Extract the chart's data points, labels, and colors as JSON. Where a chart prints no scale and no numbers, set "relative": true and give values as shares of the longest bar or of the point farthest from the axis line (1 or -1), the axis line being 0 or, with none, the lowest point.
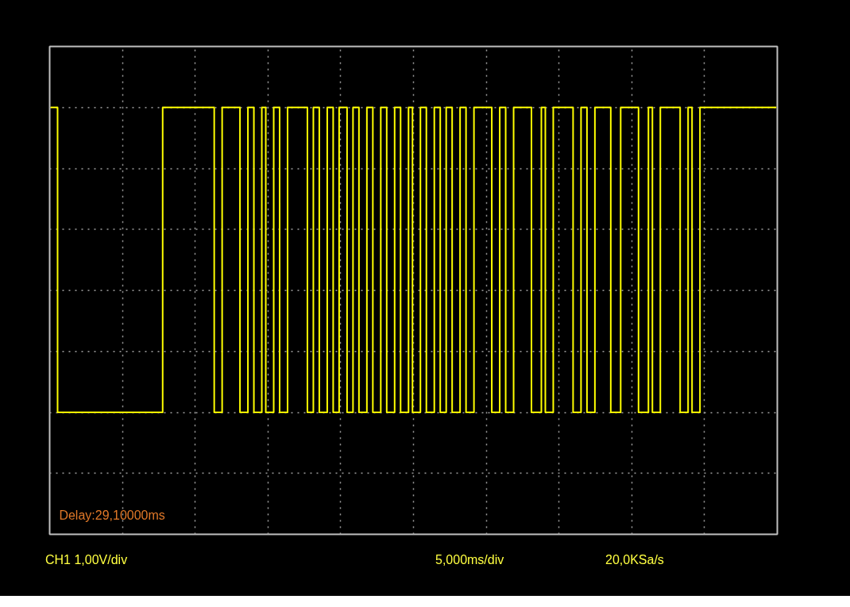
{
  "chart_data": {
    "type": "step",
    "relative": true,
    "grid": true,
    "color": "#ffff00",
    "annotations": [
      "Delay:29,10000ms",
      "CH1 1,00V/div",
      "5,000ms/div",
      "20,0KSa/s"
    ],
    "categories": [
      null,
      null,
      null,
      null,
      null,
      null,
      null,
      null,
      null,
      null,
      null,
      null,
      null,
      null,
      null,
      null,
      null,
      null,
      null,
      null,
      null,
      null,
      null,
      null,
      null,
      null,
      null,
      null,
      null,
      null,
      null,
      null,
      null,
      null,
      null,
      null,
      null,
      null,
      null,
      null,
      null,
      null,
      null,
      null,
      null,
      null,
      null,
      null,
      null,
      null,
      null,
      null,
      null,
      null,
      null,
      null,
      null,
      null,
      null,
      null,
      null,
      null,
      null,
      null,
      null,
      null,
      null,
      null,
      null,
      null,
      null,
      null,
      null,
      null,
      null,
      null,
      null,
      null,
      null,
      null,
      null,
      null,
      null,
      null,
      null,
      null,
      null,
      null,
      null,
      null,
      null,
      null,
      null,
      null,
      null,
      null,
      null,
      null,
      null,
      null,
      null,
      null,
      null,
      null,
      null,
      null,
      null,
      null,
      null,
      null,
      null,
      null,
      null,
      null,
      null,
      null,
      null,
      null,
      null,
      null,
      null,
      null,
      null,
      null,
      null,
      null,
      null,
      null,
      null,
      null,
      null,
      null,
      null,
      null,
      null,
      null,
      null,
      null,
      null,
      null,
      null,
      null,
      null,
      null,
      null,
      null,
      null,
      null,
      null,
      null,
      null,
      null,
      null,
      null,
      null,
      null,
      null,
      null,
      null,
      null,
      null,
      null,
      null,
      null,
      null,
      null,
      null,
      null,
      null,
      null,
      null,
      null,
      null,
      null,
      null,
      null,
      null,
      null,
      null,
      null,
      null,
      null,
      null,
      null,
      null,
      null,
      null,
      null,
      null,
      null,
      null,
      null,
      null,
      null,
      null,
      null,
      null,
      null,
      null,
      null,
      null,
      null,
      null,
      null,
      null,
      null,
      null,
      null,
      null,
      null,
      null,
      null,
      null,
      null,
      null,
      null,
      null,
      null,
      null,
      null,
      null,
      null,
      null,
      null,
      null,
      null,
      null,
      null,
      null,
      null,
      null,
      null,
      null,
      null,
      null,
      null,
      null,
      null,
      null,
      null,
      null,
      null,
      null,
      null,
      null,
      null,
      null,
      null,
      null,
      null,
      null,
      null,
      null,
      null,
      null,
      null,
      null,
      null,
      null,
      null,
      null,
      null,
      null,
      null,
      null,
      null,
      null,
      null,
      null,
      null,
      null,
      null,
      null,
      null,
      null,
      null,
      null,
      null,
      null,
      null,
      null,
      null,
      null,
      null,
      null,
      null,
      null,
      null,
      null,
      null,
      null,
      null,
      null,
      null,
      null,
      null,
      null,
      null,
      null,
      null,
      null,
      null,
      null,
      null,
      null,
      null,
      null,
      null,
      null,
      null,
      null,
      null,
      null,
      null,
      null,
      null,
      null,
      null,
      null,
      null,
      null,
      null,
      null,
      null,
      null,
      null,
      null,
      null,
      null,
      null,
      null,
      null,
      null,
      null,
      null,
      null,
      null,
      null,
      null,
      null,
      null,
      null,
      null,
      null,
      null,
      null,
      null,
      null,
      null,
      null,
      null,
      null,
      null,
      null,
      null,
      null,
      null,
      null,
      null,
      null,
      null,
      null,
      null,
      null,
      null,
      null,
      null
    ],
    "values": [
      1,
      1,
      1,
      1,
      0,
      0,
      0,
      0,
      0,
      0,
      0,
      0,
      0,
      0,
      0,
      0,
      0,
      0,
      0,
      0,
      0,
      0,
      0,
      0,
      0,
      0,
      0,
      0,
      0,
      0,
      0,
      0,
      0,
      0,
      0,
      0,
      0,
      0,
      0,
      0,
      0,
      0,
      0,
      0,
      0,
      0,
      0,
      0,
      0,
      0,
      0,
      0,
      0,
      0,
      0,
      0,
      0,
      1,
      1,
      1,
      1,
      1,
      1,
      1,
      1,
      1,
      1,
      1,
      1,
      1,
      1,
      1,
      1,
      1,
      1,
      1,
      1,
      1,
      1,
      1,
      1,
      1,
      1,
      0,
      0,
      0,
      0,
      1,
      1,
      1,
      1,
      1,
      1,
      1,
      1,
      1,
      0,
      0,
      0,
      0,
      1,
      1,
      1,
      0,
      0,
      0,
      0,
      1,
      1,
      0,
      0,
      0,
      0,
      1,
      1,
      1,
      0,
      0,
      0,
      0,
      1,
      1,
      1,
      1,
      1,
      1,
      1,
      1,
      1,
      1,
      0,
      0,
      0,
      1,
      1,
      1,
      0,
      0,
      0,
      0,
      1,
      1,
      1,
      0,
      0,
      0,
      1,
      1,
      1,
      1,
      0,
      0,
      0,
      1,
      1,
      1,
      0,
      0,
      0,
      0,
      1,
      1,
      1,
      0,
      0,
      0,
      0,
      1,
      1,
      1,
      0,
      0,
      0,
      0,
      1,
      1,
      1,
      0,
      0,
      0,
      0,
      1,
      1,
      0,
      0,
      0,
      0,
      1,
      1,
      1,
      0,
      0,
      0,
      0,
      1,
      1,
      1,
      0,
      0,
      0,
      1,
      1,
      1,
      0,
      0,
      0,
      0,
      1,
      1,
      1,
      0,
      0,
      0,
      0,
      1,
      1,
      1,
      1,
      1,
      1,
      1,
      1,
      1,
      0,
      0,
      0,
      0,
      1,
      1,
      1,
      0,
      0,
      0,
      0,
      1,
      1,
      1,
      1,
      1,
      1,
      1,
      1,
      1,
      0,
      0,
      0,
      0,
      0,
      1,
      1,
      0,
      0,
      0,
      0,
      1,
      1,
      1,
      1,
      1,
      1,
      1,
      1,
      1,
      1,
      0,
      0,
      0,
      0,
      1,
      1,
      1,
      0,
      0,
      0,
      0,
      1,
      1,
      1,
      1,
      1,
      1,
      1,
      1,
      0,
      0,
      0,
      0,
      0,
      1,
      1,
      1,
      1,
      1,
      1,
      1,
      1,
      1,
      0,
      0,
      0,
      0,
      0,
      1,
      1,
      0,
      0,
      0,
      0,
      1,
      1,
      1,
      1,
      1,
      1,
      1,
      1,
      1,
      1,
      0,
      0,
      0,
      0,
      1,
      1,
      0,
      0,
      0,
      0,
      1,
      1,
      1,
      1,
      1,
      1,
      1,
      1,
      1,
      1,
      1,
      1,
      1,
      1,
      1,
      1,
      1,
      1,
      1,
      1,
      1,
      1,
      1,
      1,
      1,
      1,
      1,
      1,
      1,
      1,
      1,
      1,
      1,
      1,
      1,
      1,
      1,
      1,
      1
    ]
  }
}
